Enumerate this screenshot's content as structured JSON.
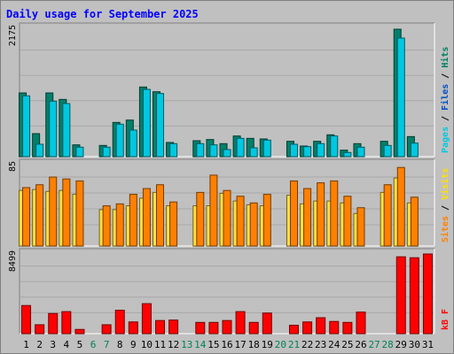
{
  "chart_data": {
    "type": "bar",
    "title": "Daily usage for September 2025",
    "days": [
      "1",
      "2",
      "3",
      "4",
      "5",
      "6",
      "7",
      "8",
      "9",
      "10",
      "11",
      "12",
      "13",
      "14",
      "15",
      "16",
      "17",
      "18",
      "19",
      "20",
      "21",
      "22",
      "23",
      "24",
      "25",
      "26",
      "27",
      "28",
      "29",
      "30",
      "31"
    ],
    "weekend_days": [
      "6",
      "7",
      "13",
      "14",
      "20",
      "21",
      "27",
      "28"
    ],
    "panels": [
      {
        "id": "hits",
        "ymax": 2175,
        "ymax_label": "2175",
        "axis_labels": [
          {
            "text": "Pages",
            "color": "#00c8e0"
          },
          {
            "text": "Files",
            "color": "#0050c0"
          },
          {
            "text": "Hits",
            "color": "#008060"
          }
        ],
        "series": [
          {
            "key": "hits",
            "color": "#00806a",
            "values": [
              1080,
              390,
              1080,
              970,
              200,
              0,
              190,
              580,
              620,
              1180,
              1100,
              240,
              0,
              270,
              290,
              220,
              350,
              310,
              300,
              0,
              260,
              180,
              260,
              370,
              110,
              220,
              0,
              260,
              2160,
              340,
              0
            ]
          },
          {
            "key": "files",
            "color": "#00c8e0",
            "values": [
              1030,
              210,
              940,
              900,
              160,
              0,
              160,
              550,
              450,
              1140,
              1070,
              220,
              0,
              220,
              200,
              120,
              310,
              150,
              280,
              0,
              210,
              170,
              220,
              350,
              70,
              160,
              0,
              190,
              2010,
              230,
              0
            ]
          }
        ]
      },
      {
        "id": "visits",
        "ymax": 85,
        "ymax_label": "85",
        "axis_labels": [
          {
            "text": "Sites",
            "color": "#ff8000"
          },
          {
            "text": "Visits",
            "color": "#ffe000"
          }
        ],
        "series": [
          {
            "key": "visits",
            "color": "#ffe040",
            "values": [
              58,
              59,
              57,
              58,
              54,
              0,
              38,
              38,
              42,
              50,
              56,
              42,
              0,
              42,
              42,
              55,
              47,
              43,
              42,
              0,
              53,
              44,
              47,
              47,
              45,
              34,
              0,
              56,
              71,
              45,
              0
            ]
          },
          {
            "key": "sites",
            "color": "#ff8000",
            "values": [
              61,
              64,
              72,
              70,
              68,
              0,
              42,
              44,
              54,
              60,
              64,
              46,
              0,
              56,
              74,
              58,
              52,
              45,
              54,
              0,
              68,
              60,
              66,
              68,
              52,
              40,
              0,
              64,
              82,
              51,
              0
            ]
          }
        ]
      },
      {
        "id": "kbytes",
        "ymax": 8499,
        "ymax_label": "8499",
        "axis_labels": [
          {
            "text": "kB F",
            "color": "#ff0000"
          }
        ],
        "series": [
          {
            "key": "kbytes",
            "color": "#ff0000",
            "values": [
              3000,
              950,
              2150,
              2350,
              450,
              0,
              950,
              2500,
              1250,
              3200,
              1400,
              1450,
              0,
              1200,
              1200,
              1400,
              2350,
              1200,
              2200,
              0,
              900,
              1250,
              1700,
              1300,
              1200,
              2300,
              0,
              0,
              8200,
              8100,
              8499
            ]
          }
        ]
      }
    ]
  }
}
